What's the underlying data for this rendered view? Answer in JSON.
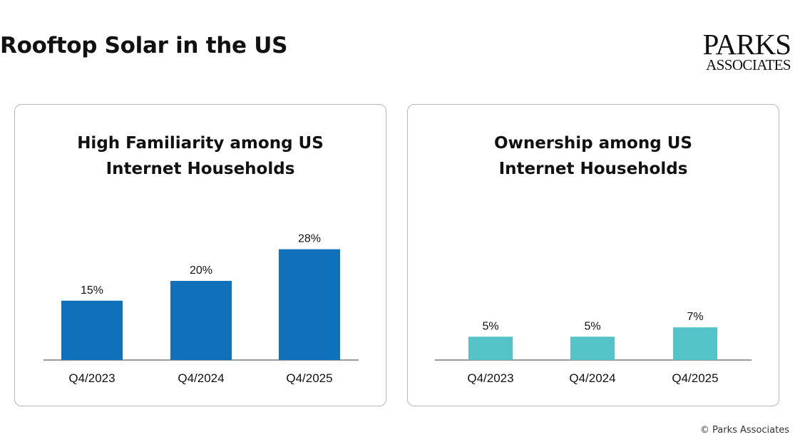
{
  "page": {
    "title": "Rooftop Solar in the US",
    "copyright": "© Parks Associates"
  },
  "logo": {
    "line1": "PARKS",
    "line2": "ASSOCIATES"
  },
  "colors": {
    "left_bars": "#1170ba",
    "right_bars": "#55c4c8",
    "axis": "#9a9a9a"
  },
  "chart_data": [
    {
      "type": "bar",
      "title_lines": [
        "High Familiarity among US",
        "Internet Households"
      ],
      "categories": [
        "Q4/2023",
        "Q4/2024",
        "Q4/2025"
      ],
      "values": [
        15,
        20,
        28
      ],
      "data_labels": [
        "15%",
        "20%",
        "28%"
      ],
      "ylim": [
        0,
        30
      ],
      "grid": false,
      "legend": "none"
    },
    {
      "type": "bar",
      "title_lines": [
        "Ownership among US",
        "Internet Households"
      ],
      "categories": [
        "Q4/2023",
        "Q4/2024",
        "Q4/2025"
      ],
      "values": [
        5,
        5,
        7
      ],
      "data_labels": [
        "5%",
        "5%",
        "7%"
      ],
      "ylim": [
        0,
        30
      ],
      "grid": false,
      "legend": "none"
    }
  ]
}
